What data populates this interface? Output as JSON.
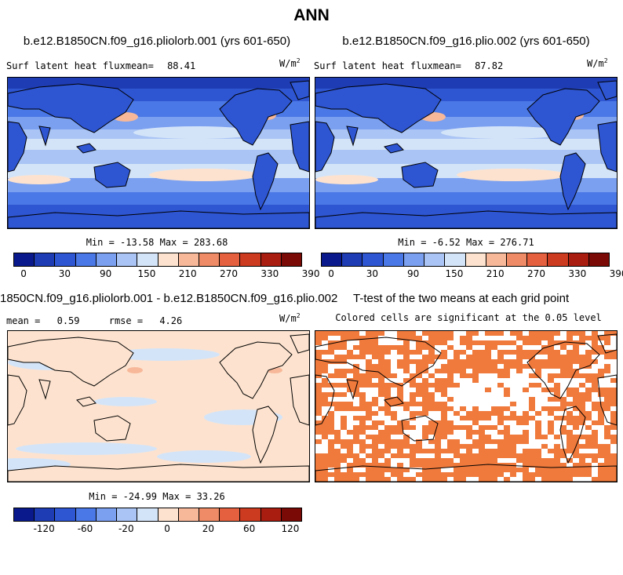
{
  "figure_title": "ANN",
  "units_text": "W/m",
  "units_exp": "2",
  "panels": {
    "top_left": {
      "title": "b.e12.B1850CN.f09_g16.pliolorb.001 (yrs 601-650)",
      "field_label": "Surf latent heat fluxmean=",
      "mean": "88.41",
      "minmax": "Min = -13.58 Max = 283.68"
    },
    "top_right": {
      "title": "b.e12.B1850CN.f09_g16.plio.002 (yrs 601-650)",
      "field_label": "Surf latent heat fluxmean=",
      "mean": "87.82",
      "minmax": "Min =  -6.52 Max = 276.71"
    },
    "bottom_left": {
      "title": "1850CN.f09_g16.pliolorb.001 - b.e12.B1850CN.f09_g16.plio.002",
      "mean_label": "mean =",
      "mean": "0.59",
      "rmse_label": "rmse =",
      "rmse": "4.26",
      "minmax": "Min = -24.99 Max = 33.26"
    },
    "bottom_right": {
      "title": "T-test of the two means at each grid point",
      "subtitle": "Colored cells are significant at the 0.05 level"
    }
  },
  "chart_data": [
    {
      "type": "heatmap",
      "name": "top_left",
      "colorbar_ticks": [
        "0",
        "30",
        "90",
        "150",
        "210",
        "270",
        "330",
        "390"
      ],
      "colors": [
        "#0a1a8c",
        "#1e3cb4",
        "#2e55d2",
        "#4a78e6",
        "#7ba0f0",
        "#a9c4f5",
        "#d4e4f8",
        "#fde3cf",
        "#f7b89a",
        "#ef8b66",
        "#e4603e",
        "#cc3a1f",
        "#a81d10",
        "#7a0a05"
      ]
    },
    {
      "type": "heatmap",
      "name": "top_right",
      "colorbar_ticks": [
        "0",
        "30",
        "90",
        "150",
        "210",
        "270",
        "330",
        "390"
      ],
      "colors": [
        "#0a1a8c",
        "#1e3cb4",
        "#2e55d2",
        "#4a78e6",
        "#7ba0f0",
        "#a9c4f5",
        "#d4e4f8",
        "#fde3cf",
        "#f7b89a",
        "#ef8b66",
        "#e4603e",
        "#cc3a1f",
        "#a81d10",
        "#7a0a05"
      ]
    },
    {
      "type": "heatmap",
      "name": "bottom_left",
      "colorbar_ticks": [
        "-120",
        "-60",
        "-20",
        "0",
        "20",
        "60",
        "120"
      ],
      "colors": [
        "#0a1a8c",
        "#1e3cb4",
        "#2e55d2",
        "#4a78e6",
        "#7ba0f0",
        "#a9c4f5",
        "#d4e4f8",
        "#fde3cf",
        "#f7b89a",
        "#ef8b66",
        "#e4603e",
        "#cc3a1f",
        "#a81d10",
        "#7a0a05"
      ]
    }
  ]
}
